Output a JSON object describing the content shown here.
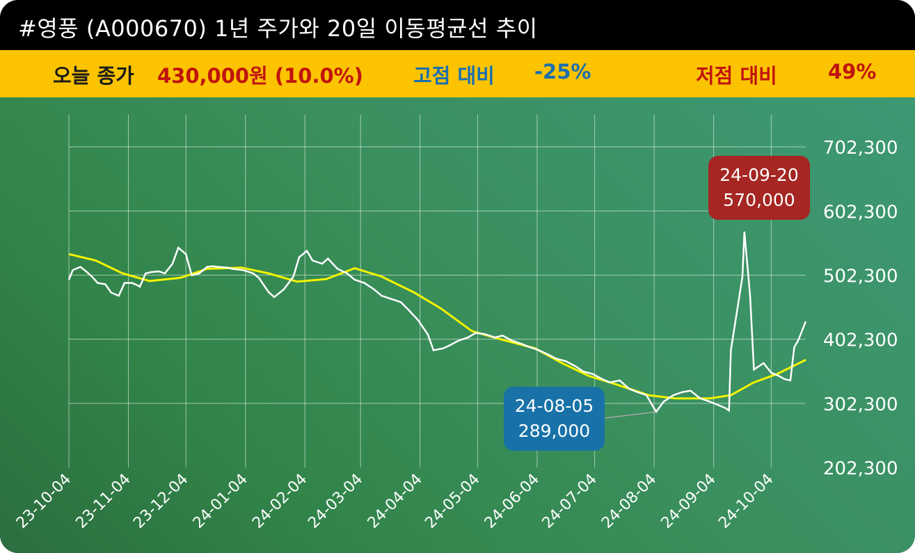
{
  "header": {
    "title": "#영풍 (A000670) 1년 주가와 20일 이동평균선 추이"
  },
  "infobar": {
    "close_label": "오늘 종가",
    "close_value": "430,000원 (10.0%)",
    "high_label": "고점 대비",
    "high_value": "-25%",
    "low_label": "저점 대비",
    "low_value": "49%"
  },
  "colors": {
    "price_line": "#ffffff",
    "ma_line": "#f4f400",
    "high_callout": "#a52622",
    "low_callout": "#1872a8",
    "label_dark": "#1a1a1a",
    "label_red": "#c0140e",
    "label_blue": "#1a6fae"
  },
  "chart_data": {
    "type": "line",
    "title": "#영풍 (A000670) 1년 주가와 20일 이동평균선 추이",
    "xlabel": "",
    "ylabel": "",
    "x_start": "2023-10-04",
    "x_end": "2024-10-22",
    "ylim": [
      202300,
      752300
    ],
    "y_ticks": [
      202300,
      302300,
      402300,
      502300,
      602300,
      702300
    ],
    "y_tick_labels": [
      "202,300",
      "302,300",
      "402,300",
      "502,300",
      "602,300",
      "702,300"
    ],
    "x_ticks": [
      "2023-10-04",
      "2023-11-04",
      "2023-12-04",
      "2024-01-04",
      "2024-02-04",
      "2024-03-04",
      "2024-04-04",
      "2024-05-04",
      "2024-06-04",
      "2024-07-04",
      "2024-08-04",
      "2024-09-04",
      "2024-10-04"
    ],
    "x_tick_labels": [
      "23-10-04",
      "23-11-04",
      "23-12-04",
      "24-01-04",
      "24-02-04",
      "24-03-04",
      "24-04-04",
      "24-05-04",
      "24-06-04",
      "24-07-04",
      "24-08-04",
      "24-09-04",
      "24-10-04"
    ],
    "grid": true,
    "legend": "none",
    "series": [
      {
        "kind": "price",
        "x": [
          "2023-10-04",
          "2023-10-06",
          "2023-10-10",
          "2023-10-13",
          "2023-10-16",
          "2023-10-19",
          "2023-10-23",
          "2023-10-26",
          "2023-10-30",
          "2023-11-02",
          "2023-11-06",
          "2023-11-09",
          "2023-11-10",
          "2023-11-13",
          "2023-11-16",
          "2023-11-20",
          "2023-11-23",
          "2023-11-27",
          "2023-11-30",
          "2023-12-04",
          "2023-12-07",
          "2023-12-11",
          "2023-12-13",
          "2023-12-15",
          "2023-12-18",
          "2023-12-21",
          "2023-12-26",
          "2023-12-28",
          "2024-01-03",
          "2024-01-08",
          "2024-01-11",
          "2024-01-16",
          "2024-01-19",
          "2024-01-24",
          "2024-01-29",
          "2024-02-01",
          "2024-02-05",
          "2024-02-08",
          "2024-02-13",
          "2024-02-16",
          "2024-02-21",
          "2024-02-26",
          "2024-03-01",
          "2024-03-06",
          "2024-03-11",
          "2024-03-15",
          "2024-03-20",
          "2024-03-25",
          "2024-03-29",
          "2024-04-03",
          "2024-04-08",
          "2024-04-11",
          "2024-04-16",
          "2024-04-19",
          "2024-04-24",
          "2024-04-29",
          "2024-05-03",
          "2024-05-08",
          "2024-05-13",
          "2024-05-17",
          "2024-05-22",
          "2024-05-27",
          "2024-05-31",
          "2024-06-05",
          "2024-06-10",
          "2024-06-14",
          "2024-06-19",
          "2024-06-24",
          "2024-06-28",
          "2024-07-03",
          "2024-07-08",
          "2024-07-12",
          "2024-07-17",
          "2024-07-22",
          "2024-07-26",
          "2024-07-31",
          "2024-08-05",
          "2024-08-09",
          "2024-08-14",
          "2024-08-19",
          "2024-08-23",
          "2024-08-28",
          "2024-09-02",
          "2024-09-06",
          "2024-09-10",
          "2024-09-12",
          "2024-09-13",
          "2024-09-19",
          "2024-09-20",
          "2024-09-23",
          "2024-09-25",
          "2024-09-30",
          "2024-10-04",
          "2024-10-08",
          "2024-10-11",
          "2024-10-14",
          "2024-10-16",
          "2024-10-18",
          "2024-10-22"
        ],
        "values": [
          495000,
          510000,
          515000,
          508000,
          500000,
          490000,
          488000,
          475000,
          470000,
          490000,
          490000,
          486000,
          484000,
          505000,
          507000,
          508000,
          505000,
          520000,
          545000,
          535000,
          502000,
          505000,
          510000,
          515000,
          516000,
          515000,
          514000,
          512000,
          510000,
          505000,
          498000,
          476000,
          468000,
          480000,
          500000,
          530000,
          540000,
          525000,
          520000,
          528000,
          512000,
          505000,
          495000,
          490000,
          480000,
          470000,
          465000,
          460000,
          448000,
          432000,
          410000,
          385000,
          388000,
          392000,
          400000,
          405000,
          412000,
          410000,
          405000,
          408000,
          400000,
          395000,
          390000,
          385000,
          378000,
          372000,
          368000,
          360000,
          352000,
          348000,
          340000,
          335000,
          338000,
          325000,
          320000,
          315000,
          289000,
          305000,
          315000,
          320000,
          322000,
          310000,
          305000,
          300000,
          295000,
          291000,
          385000,
          500000,
          570000,
          470000,
          355000,
          365000,
          350000,
          345000,
          340000,
          338000,
          390000,
          400000,
          430000
        ]
      },
      {
        "kind": "ma20",
        "x": [
          "2023-10-04",
          "2023-10-18",
          "2023-11-01",
          "2023-11-15",
          "2023-12-01",
          "2023-12-15",
          "2024-01-02",
          "2024-01-16",
          "2024-01-31",
          "2024-02-15",
          "2024-03-01",
          "2024-03-15",
          "2024-04-01",
          "2024-04-15",
          "2024-05-01",
          "2024-05-15",
          "2024-06-03",
          "2024-06-17",
          "2024-07-01",
          "2024-07-15",
          "2024-08-01",
          "2024-08-15",
          "2024-09-02",
          "2024-09-13",
          "2024-09-25",
          "2024-10-07",
          "2024-10-22"
        ],
        "values": [
          535000,
          525000,
          505000,
          493000,
          498000,
          512000,
          514000,
          505000,
          492000,
          496000,
          513000,
          500000,
          475000,
          450000,
          415000,
          403000,
          388000,
          365000,
          345000,
          332000,
          315000,
          310000,
          310000,
          315000,
          335000,
          348000,
          370000
        ]
      }
    ],
    "annotations": [
      {
        "text_date": "24-09-20",
        "text_value": "570,000",
        "x": "2024-09-20",
        "y": 570000,
        "type": "high"
      },
      {
        "text_date": "24-08-05",
        "text_value": "289,000",
        "x": "2024-08-05",
        "y": 289000,
        "type": "low"
      }
    ]
  }
}
